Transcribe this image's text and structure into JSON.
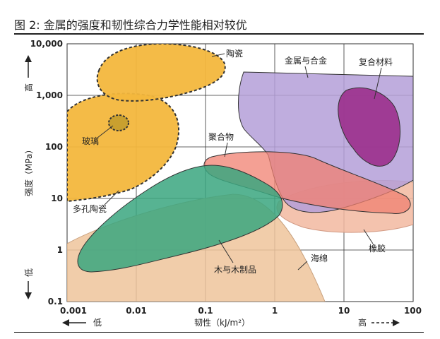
{
  "figure_title": "图 2:  金属的强度和韧性综合力学性能相对较优",
  "chart_data": {
    "type": "scatter",
    "title": "图 2:  金属的强度和韧性综合力学性能相对较优",
    "xlabel": "韧性（kJ/m²）",
    "ylabel": "强度（MPa）",
    "x_scale": "log",
    "y_scale": "log",
    "xlim": [
      0.001,
      100
    ],
    "ylim": [
      0.1,
      10000
    ],
    "grid": true,
    "x_ticks": [
      "0.001",
      "0.01",
      "0.1",
      "1",
      "10",
      "100"
    ],
    "y_ticks": [
      "10,000",
      "1,000",
      "100",
      "10",
      "1",
      "0.1"
    ],
    "x_low_label": "低",
    "x_high_label": "高",
    "y_low_label": "低",
    "y_high_label": "高",
    "regions": [
      {
        "name": "陶瓷",
        "color": "#f3b73d",
        "toughness_range": [
          0.003,
          0.6
        ],
        "strength_range": [
          1000,
          10000
        ]
      },
      {
        "name": "玻璃",
        "color": "#f3b73d",
        "toughness_range": [
          0.004,
          0.007
        ],
        "strength_range": [
          250,
          450
        ]
      },
      {
        "name": "多孔陶瓷",
        "color": "#f3b73d",
        "toughness_range": [
          0.001,
          0.04
        ],
        "strength_range": [
          10,
          1500
        ]
      },
      {
        "name": "金属与合金",
        "color": "#b49fd8",
        "toughness_range": [
          0.15,
          100
        ],
        "strength_range": [
          6,
          3000
        ]
      },
      {
        "name": "复合材料",
        "color": "#9b2f8c",
        "toughness_range": [
          10,
          40
        ],
        "strength_range": [
          50,
          1200
        ]
      },
      {
        "name": "聚合物",
        "color": "#f08070",
        "toughness_range": [
          0.1,
          80
        ],
        "strength_range": [
          6,
          80
        ]
      },
      {
        "name": "木与木制品",
        "color": "#3aa67f",
        "toughness_range": [
          0.002,
          2
        ],
        "strength_range": [
          0.5,
          60
        ]
      },
      {
        "name": "橡胶",
        "color": "#f2b8a0",
        "toughness_range": [
          1,
          100
        ],
        "strength_range": [
          2,
          20
        ]
      },
      {
        "name": "海绵",
        "color": "#efc49b",
        "toughness_range": [
          0.001,
          5
        ],
        "strength_range": [
          0.1,
          10
        ]
      }
    ]
  }
}
